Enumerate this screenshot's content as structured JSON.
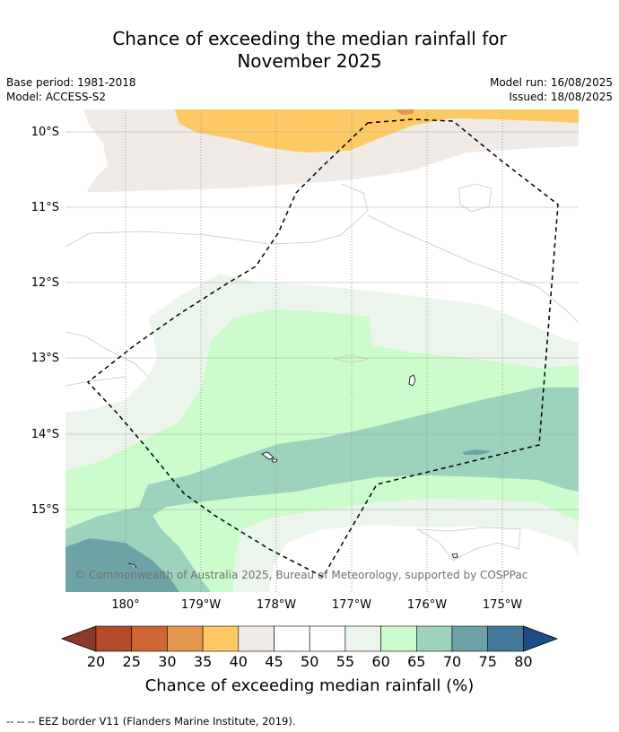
{
  "title_line1": "Chance of exceeding the median rainfall for",
  "title_line2": "November 2025",
  "meta_left": [
    "Base period: 1981-2018",
    "Model: ACCESS-S2"
  ],
  "meta_right": [
    "Model run: 16/08/2025",
    "Issued: 18/08/2025"
  ],
  "lat_labels": [
    "10°S",
    "11°S",
    "12°S",
    "13°S",
    "14°S",
    "15°S"
  ],
  "lon_labels": [
    "180°",
    "179°W",
    "178°W",
    "177°W",
    "176°W",
    "175°W"
  ],
  "copyright": "© Commonwealth of Australia 2025, Bureau of Meteorology, supported by COSPPac",
  "colorbar": {
    "ticks": [
      "20",
      "25",
      "30",
      "35",
      "40",
      "45",
      "50",
      "55",
      "60",
      "65",
      "70",
      "75",
      "80"
    ],
    "colors": [
      "#8b3a2a",
      "#b5492b",
      "#cf6535",
      "#e3964c",
      "#fdc965",
      "#f1ebe7",
      "#ffffff",
      "#ffffff",
      "#ecf5ec",
      "#ccfccc",
      "#9dd2bd",
      "#6da3a6",
      "#42789a",
      "#1c4d86"
    ],
    "label": "Chance of exceeding median rainfall (%)"
  },
  "footnote": "--  --  -- EEZ border V11 (Flanders Marine Institute, 2019)."
}
